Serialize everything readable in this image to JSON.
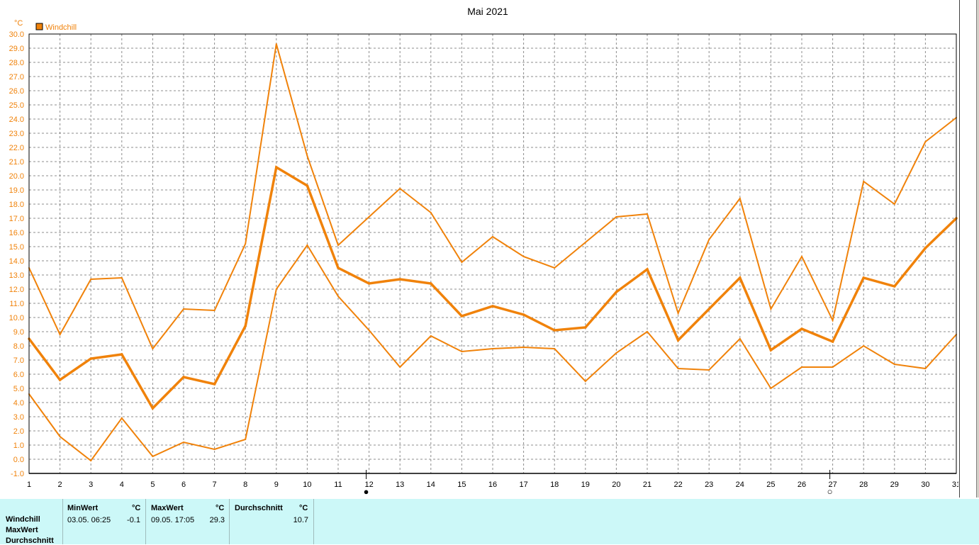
{
  "chart_data": {
    "type": "line",
    "title": "Mai 2021",
    "ylabel": "°C",
    "legend": {
      "label": "Windchill",
      "color": "#f0820a",
      "placement": "top-left"
    },
    "ylim": [
      -1.0,
      30.0
    ],
    "y_ticks": [
      "-1.0",
      "0.0",
      "1.0",
      "2.0",
      "3.0",
      "4.0",
      "5.0",
      "6.0",
      "7.0",
      "8.0",
      "9.0",
      "10.0",
      "11.0",
      "12.0",
      "13.0",
      "14.0",
      "15.0",
      "16.0",
      "17.0",
      "18.0",
      "19.0",
      "20.0",
      "21.0",
      "22.0",
      "23.0",
      "24.0",
      "25.0",
      "26.0",
      "27.0",
      "28.0",
      "29.0",
      "30.0"
    ],
    "x": [
      1,
      2,
      3,
      4,
      5,
      6,
      7,
      8,
      9,
      10,
      11,
      12,
      13,
      14,
      15,
      16,
      17,
      18,
      19,
      20,
      21,
      22,
      23,
      24,
      25,
      26,
      27,
      28,
      29,
      30,
      31
    ],
    "x_ticks": [
      "1",
      "2",
      "3",
      "4",
      "5",
      "6",
      "7",
      "8",
      "9",
      "10",
      "11",
      "12",
      "13",
      "14",
      "15",
      "16",
      "17",
      "18",
      "19",
      "20",
      "21",
      "22",
      "23",
      "24",
      "25",
      "26",
      "27",
      "28",
      "29",
      "30",
      "31"
    ],
    "grid": true,
    "moon_phases": [
      {
        "day": 12,
        "symbol": "●"
      },
      {
        "day": 27,
        "symbol": "○"
      }
    ],
    "series": [
      {
        "name": "Max",
        "stroke": 2,
        "values": [
          13.5,
          8.8,
          12.7,
          12.8,
          7.8,
          10.6,
          10.5,
          15.2,
          29.3,
          21.4,
          15.1,
          17.1,
          19.1,
          17.4,
          13.9,
          15.7,
          14.3,
          13.5,
          15.3,
          17.1,
          17.3,
          10.3,
          15.5,
          18.4,
          10.6,
          14.3,
          9.8,
          19.6,
          18.0,
          22.4,
          24.1
        ]
      },
      {
        "name": "Durchschnitt",
        "stroke": 3.5,
        "values": [
          8.5,
          5.6,
          7.1,
          7.4,
          3.6,
          5.8,
          5.3,
          9.4,
          20.6,
          19.3,
          13.5,
          12.4,
          12.7,
          12.4,
          10.1,
          10.8,
          10.2,
          9.1,
          9.3,
          11.8,
          13.4,
          8.4,
          10.6,
          12.8,
          7.7,
          9.2,
          8.3,
          12.8,
          12.2,
          14.9,
          17.0
        ]
      },
      {
        "name": "Min",
        "stroke": 2,
        "values": [
          4.6,
          1.6,
          -0.1,
          2.9,
          0.2,
          1.2,
          0.7,
          1.4,
          12.0,
          15.1,
          11.5,
          9.1,
          6.5,
          8.7,
          7.6,
          7.8,
          7.9,
          7.8,
          5.5,
          7.5,
          9.0,
          6.4,
          6.3,
          8.5,
          5.0,
          6.5,
          6.5,
          8.0,
          6.7,
          6.4,
          8.8
        ]
      }
    ]
  },
  "stats": {
    "row_labels": [
      "Windchill",
      "MaxWert",
      "Durchschnitt"
    ],
    "min": {
      "header": "MinWert",
      "unit": "°C",
      "time": "03.05.  06:25",
      "value": "-0.1"
    },
    "max": {
      "header": "MaxWert",
      "unit": "°C",
      "time": "09.05.  17:05",
      "value": "29.3"
    },
    "avg": {
      "header": "Durchschnitt",
      "unit": "°C",
      "value": "10.7"
    }
  }
}
